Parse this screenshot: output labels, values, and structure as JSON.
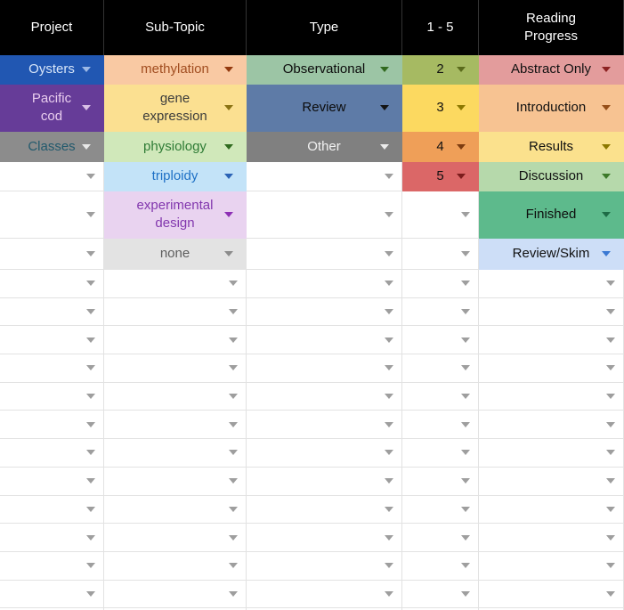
{
  "sheet": {
    "grid_color": "#e2e2e2",
    "empty_arrow_color": "#9e9e9e",
    "header": {
      "bg": "#000000",
      "fg": "#ffffff",
      "columns": [
        {
          "lines": [
            "Project"
          ]
        },
        {
          "lines": [
            "Sub-Topic"
          ]
        },
        {
          "lines": [
            "Type"
          ]
        },
        {
          "lines": [
            "1 - 5"
          ]
        },
        {
          "lines": [
            "Reading",
            "Progress"
          ]
        }
      ]
    },
    "rows": [
      {
        "cells": [
          {
            "lines": [
              "Oysters"
            ],
            "bg": "#2157b2",
            "fg": "#d8e6f9",
            "arrow": "#9db9e6"
          },
          {
            "lines": [
              "methylation"
            ],
            "bg": "#f9c9a3",
            "fg": "#a14d20",
            "arrow": "#93390e"
          },
          {
            "lines": [
              "Observational"
            ],
            "bg": "#9cc5a5",
            "fg": "#0b0b0b",
            "arrow": "#31691f"
          },
          {
            "lines": [
              "2"
            ],
            "bg": "#a6ba62",
            "fg": "#111111",
            "arrow": "#5a6b1c"
          },
          {
            "lines": [
              "Abstract Only"
            ],
            "bg": "#e39c9c",
            "fg": "#111111",
            "arrow": "#8c2222"
          }
        ]
      },
      {
        "cells": [
          {
            "lines": [
              "Pacific",
              "cod"
            ],
            "bg": "#663c98",
            "fg": "#e9cdee",
            "arrow": "#d9c0e6"
          },
          {
            "lines": [
              "gene",
              "expression"
            ],
            "bg": "#fbe091",
            "fg": "#3c3c3c",
            "arrow": "#8a7313"
          },
          {
            "lines": [
              "Review"
            ],
            "bg": "#5e7ba7",
            "fg": "#0c0c0c",
            "arrow": "#141414"
          },
          {
            "lines": [
              "3"
            ],
            "bg": "#fcd960",
            "fg": "#111111",
            "arrow": "#8c7800"
          },
          {
            "lines": [
              "Introduction"
            ],
            "bg": "#f7c392",
            "fg": "#111111",
            "arrow": "#964f19"
          }
        ]
      },
      {
        "cells": [
          {
            "lines": [
              "Classes"
            ],
            "bg": "#8c8c8c",
            "fg": "#235a6d",
            "arrow": "#e9e9e9"
          },
          {
            "lines": [
              "physiology"
            ],
            "bg": "#d0e8ba",
            "fg": "#2f7c36",
            "arrow": "#2f6b1f"
          },
          {
            "lines": [
              "Other"
            ],
            "bg": "#808080",
            "fg": "#f2f2f2",
            "arrow": "#ececec"
          },
          {
            "lines": [
              "4"
            ],
            "bg": "#ef9f58",
            "fg": "#111111",
            "arrow": "#7d3c10"
          },
          {
            "lines": [
              "Results"
            ],
            "bg": "#fbe18d",
            "fg": "#111111",
            "arrow": "#8c7800"
          }
        ]
      },
      {
        "cells": [
          null,
          {
            "lines": [
              "triploidy"
            ],
            "bg": "#c3e3f8",
            "fg": "#1e70c5",
            "arrow": "#2b63b5"
          },
          null,
          {
            "lines": [
              "5"
            ],
            "bg": "#db6767",
            "fg": "#111111",
            "arrow": "#7c1c1c"
          },
          {
            "lines": [
              "Discussion"
            ],
            "bg": "#b6d9ab",
            "fg": "#111111",
            "arrow": "#3d7a29"
          }
        ]
      },
      {
        "cells": [
          null,
          {
            "lines": [
              "experimental",
              "design"
            ],
            "bg": "#e9d3f0",
            "fg": "#8237ae",
            "arrow": "#8d2fb5"
          },
          null,
          null,
          {
            "lines": [
              "Finished"
            ],
            "bg": "#5dba8c",
            "fg": "#0e0e0e",
            "arrow": "#1e6b46"
          }
        ]
      },
      {
        "cells": [
          null,
          {
            "lines": [
              "none"
            ],
            "bg": "#e3e3e3",
            "fg": "#5e5e5e",
            "arrow": "#8c8c8c"
          },
          null,
          null,
          {
            "lines": [
              "Review/Skim"
            ],
            "bg": "#cddef7",
            "fg": "#111111",
            "arrow": "#3b79d3"
          }
        ]
      }
    ],
    "empty_row_count": 13
  }
}
